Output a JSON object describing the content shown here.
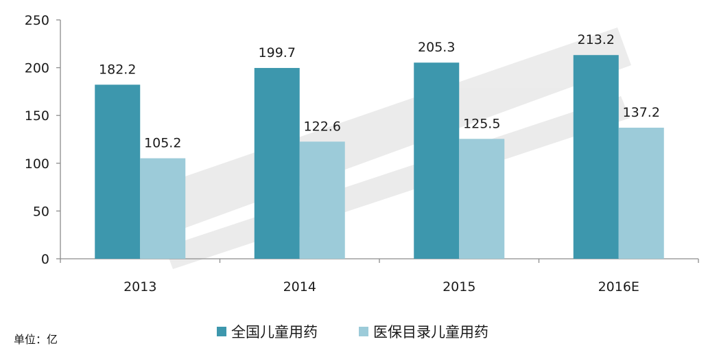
{
  "chart_data": {
    "type": "bar",
    "categories": [
      "2013",
      "2014",
      "2015",
      "2016E"
    ],
    "series": [
      {
        "name": "全国儿童用药",
        "values": [
          182.2,
          199.7,
          205.3,
          213.2
        ],
        "color": "#3d97ad"
      },
      {
        "name": "医保目录儿童用药",
        "values": [
          105.2,
          122.6,
          125.5,
          137.2
        ],
        "color": "#9ccbd9"
      }
    ],
    "ylim": [
      0,
      250
    ],
    "yticks": [
      0,
      50,
      100,
      150,
      200,
      250
    ],
    "grid": false,
    "legend_position": "bottom",
    "unit_note": "单位：亿",
    "title": "",
    "xlabel": "",
    "ylabel": ""
  }
}
